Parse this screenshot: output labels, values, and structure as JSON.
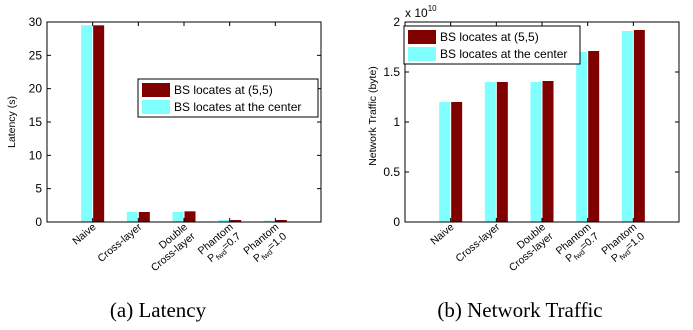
{
  "colors": {
    "series_a": "#800000",
    "series_b": "#80ffff",
    "axis": "#000000",
    "legend_border": "#000000"
  },
  "chart_data": [
    {
      "type": "bar",
      "panel": "latency",
      "ylabel": "Latency (s)",
      "ylim": [
        0,
        30
      ],
      "yticks": [
        0,
        5,
        10,
        15,
        20,
        25,
        30
      ],
      "ytick_labels": [
        "0",
        "5",
        "10",
        "15",
        "20",
        "25",
        "30"
      ],
      "categories": [
        {
          "line1": "Naive",
          "line2": ""
        },
        {
          "line1": "Cross-layer",
          "line2": ""
        },
        {
          "line1": "Double",
          "line2": "Cross-layer"
        },
        {
          "line1": "Phantom",
          "line2": "P",
          "sub": "fwd",
          "suffix": "=0.7"
        },
        {
          "line1": "Phantom",
          "line2": "P",
          "sub": "fwd",
          "suffix": "=1.0"
        }
      ],
      "series": [
        {
          "name": "BS locates at the center",
          "values": [
            29.5,
            1.5,
            1.5,
            0.3,
            0.2
          ]
        },
        {
          "name": "BS locates at (5,5)",
          "values": [
            29.5,
            1.5,
            1.6,
            0.3,
            0.3
          ]
        }
      ],
      "legend": {
        "placement": "center-right",
        "entries": [
          "BS locates at (5,5)",
          "BS locates at the center"
        ]
      },
      "caption": "(a) Latency"
    },
    {
      "type": "bar",
      "panel": "traffic",
      "ylabel": "Network Traffic (byte)",
      "ylim": [
        0,
        2
      ],
      "yticks": [
        0,
        0.5,
        1,
        1.5,
        2
      ],
      "ytick_labels": [
        "0",
        "0.5",
        "1",
        "1.5",
        "2"
      ],
      "multiplier": {
        "base": "x 10",
        "exp": "10"
      },
      "categories": [
        {
          "line1": "Naive",
          "line2": ""
        },
        {
          "line1": "Cross-layer",
          "line2": ""
        },
        {
          "line1": "Double",
          "line2": "Cross-layer"
        },
        {
          "line1": "Phantom",
          "line2": "P",
          "sub": "fwd",
          "suffix": "=0.7"
        },
        {
          "line1": "Phantom",
          "line2": "P",
          "sub": "fwd",
          "suffix": "=1.0"
        }
      ],
      "series": [
        {
          "name": "BS locates at the center",
          "values": [
            1.2,
            1.4,
            1.4,
            1.7,
            1.91
          ]
        },
        {
          "name": "BS locates at (5,5)",
          "values": [
            1.2,
            1.4,
            1.41,
            1.71,
            1.92
          ]
        }
      ],
      "legend": {
        "placement": "top-left",
        "entries": [
          "BS locates at (5,5)",
          "BS locates at the center"
        ]
      },
      "caption": "(b) Network Traffic"
    }
  ]
}
